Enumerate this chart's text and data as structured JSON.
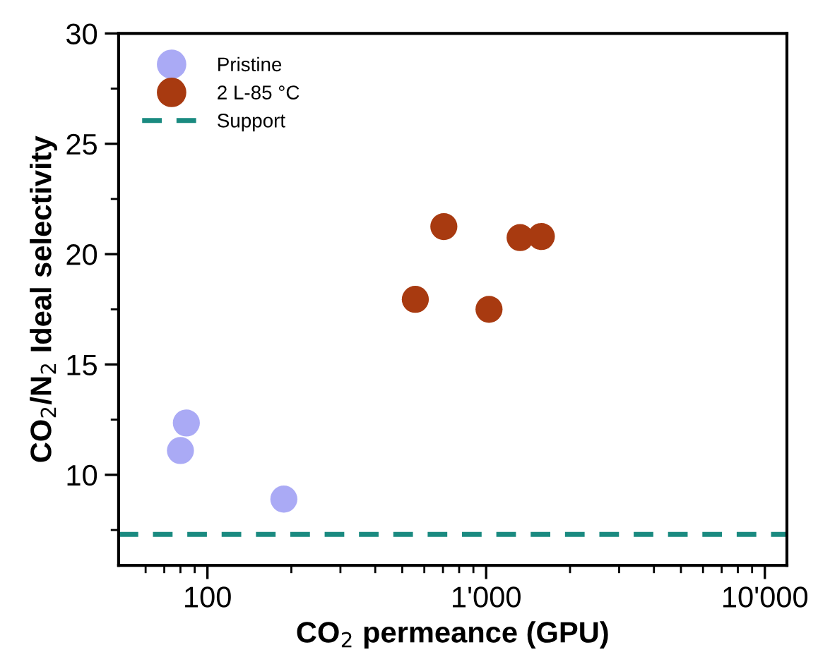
{
  "chart_data": {
    "type": "scatter",
    "xlabel": "CO$_{2}$ permeance (GPU)",
    "ylabel": "CO$_{2}$/N$_{2}$ Ideal selectivity",
    "log": "x",
    "xlim": [
      48,
      12000
    ],
    "ylim": [
      5.9,
      30
    ],
    "xticks": [
      {
        "value": 60,
        "label": null
      },
      {
        "value": 70,
        "label": null
      },
      {
        "value": 80,
        "label": null
      },
      {
        "value": 90,
        "label": null
      },
      100,
      {
        "value": 200,
        "label": null
      },
      {
        "value": 300,
        "label": null
      },
      {
        "value": 400,
        "label": null
      },
      {
        "value": 500,
        "label": null
      },
      {
        "value": 600,
        "label": null
      },
      {
        "value": 700,
        "label": null
      },
      {
        "value": 800,
        "label": null
      },
      {
        "value": 900,
        "label": null
      },
      {
        "value": 1000,
        "label": "1'000"
      },
      {
        "value": 2000,
        "label": null
      },
      {
        "value": 3000,
        "label": null
      },
      {
        "value": 4000,
        "label": null
      },
      {
        "value": 5000,
        "label": null
      },
      {
        "value": 6000,
        "label": null
      },
      {
        "value": 7000,
        "label": null
      },
      {
        "value": 8000,
        "label": null
      },
      {
        "value": 9000,
        "label": null
      },
      {
        "value": 10000,
        "label": "10'000"
      }
    ],
    "yticks": [
      {
        "value": 7.5,
        "label": null
      },
      10,
      {
        "value": 12.5,
        "label": null
      },
      15,
      {
        "value": 17.5,
        "label": null
      },
      20,
      {
        "value": 22.5,
        "label": null
      },
      25,
      {
        "value": 27.5,
        "label": null
      },
      30
    ],
    "marker": "circle",
    "grid": false,
    "legend": "top left",
    "series": [
      {
        "name": "Pristine",
        "color": "#aaaaf5",
        "x": [
          80,
          84,
          188
        ],
        "values": [
          11.1,
          12.35,
          8.9
        ]
      },
      {
        "name": "2 L-85 °C",
        "color": "#a83a10",
        "x": [
          557,
          705,
          1024,
          1324,
          1578
        ],
        "values": [
          17.95,
          21.25,
          17.5,
          20.75,
          20.8
        ]
      }
    ],
    "ref_lines": [
      {
        "axis": "y",
        "value": 7.3,
        "label": "Support",
        "color": "#1a8a80",
        "line_style": "dashed"
      }
    ]
  }
}
